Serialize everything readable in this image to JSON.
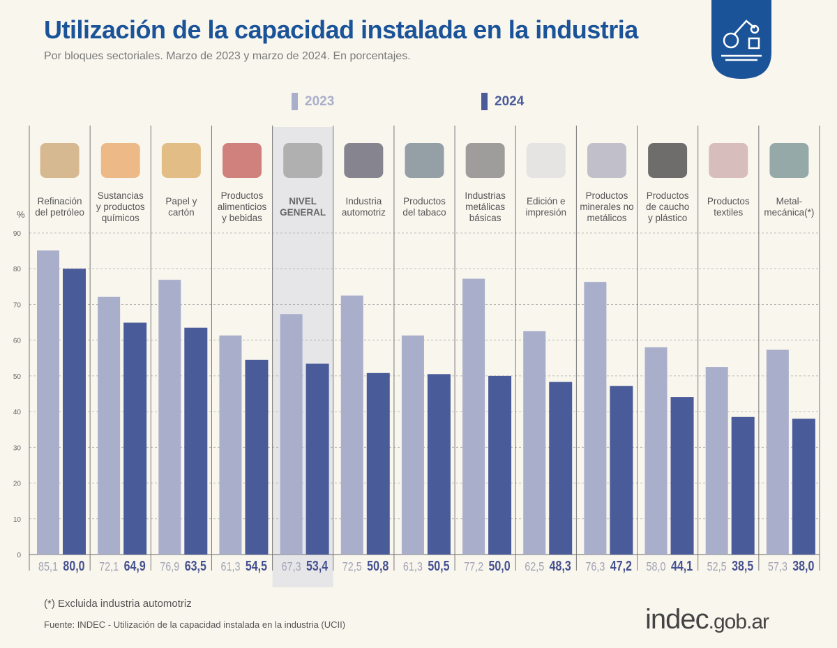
{
  "header": {
    "title": "Utilización de la capacidad instalada en la industria",
    "subtitle": "Por bloques sectoriales. Marzo de 2023 y marzo de 2024. En porcentajes."
  },
  "footer": {
    "note": "(*) Excluida industria automotriz",
    "source": "Fuente: INDEC - Utilización de la capacidad instalada en la industria (UCII)",
    "brand_main": "indec",
    "brand_domain": ".gob.ar"
  },
  "chart_data": {
    "type": "bar",
    "title": "Utilización de la capacidad instalada en la industria",
    "ylabel": "%",
    "ylim": [
      0,
      90
    ],
    "yticks": [
      0,
      10,
      20,
      30,
      40,
      50,
      60,
      70,
      80,
      90
    ],
    "grid": true,
    "legend_placement": "top",
    "highlight_category": "NIVEL GENERAL",
    "categories": [
      "Refinación del petróleo",
      "Sustancias y productos químicos",
      "Papel y cartón",
      "Productos alimenticios y bebidas",
      "NIVEL GENERAL",
      "Industria automotriz",
      "Productos del tabaco",
      "Industrias metálicas básicas",
      "Edición e impresión",
      "Productos minerales no metálicos",
      "Productos de caucho y plástico",
      "Productos textiles",
      "Metal-mecánica(*)"
    ],
    "category_lines": [
      [
        "Refinación",
        "del petróleo"
      ],
      [
        "Sustancias",
        "y productos",
        "químicos"
      ],
      [
        "Papel y",
        "cartón"
      ],
      [
        "Productos",
        "alimenticios",
        "y bebidas"
      ],
      [
        "NIVEL",
        "GENERAL"
      ],
      [
        "Industria",
        "automotriz"
      ],
      [
        "Productos",
        "del tabaco"
      ],
      [
        "Industrias",
        "metálicas",
        "básicas"
      ],
      [
        "Edición e",
        "impresión"
      ],
      [
        "Productos",
        "minerales no",
        "metálicos"
      ],
      [
        "Productos",
        "de caucho",
        "y plástico"
      ],
      [
        "Productos",
        "textiles"
      ],
      [
        "Metal-",
        "mecánica(*)"
      ]
    ],
    "series": [
      {
        "name": "2023",
        "color": "#a9aecb",
        "values": [
          85.1,
          72.1,
          76.9,
          61.3,
          67.3,
          72.5,
          61.3,
          77.2,
          62.5,
          76.3,
          58.0,
          52.5,
          57.3
        ]
      },
      {
        "name": "2024",
        "color": "#4a5b9a",
        "values": [
          80.0,
          64.9,
          63.5,
          54.5,
          53.4,
          50.8,
          50.5,
          50.0,
          48.3,
          47.2,
          44.1,
          38.5,
          38.0
        ]
      }
    ],
    "value_labels_2023": [
      "85,1",
      "72,1",
      "76,9",
      "61,3",
      "67,3",
      "72,5",
      "61,3",
      "77,2",
      "62,5",
      "76,3",
      "58,0",
      "52,5",
      "57,3"
    ],
    "value_labels_2024": [
      "80,0",
      "64,9",
      "63,5",
      "54,5",
      "53,4",
      "50,8",
      "50,5",
      "50,0",
      "48,3",
      "47,2",
      "44,1",
      "38,5",
      "38,0"
    ]
  }
}
